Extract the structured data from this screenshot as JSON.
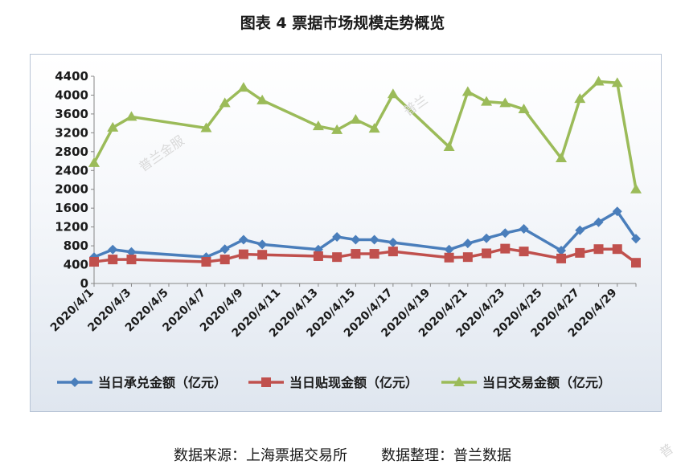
{
  "title": "图表 4  票据市场规模走势概览",
  "footer": {
    "source": "数据来源：上海票据交易所",
    "organizer": "数据整理：普兰数据"
  },
  "watermarks": [
    "普兰金服",
    "普兰",
    "普"
  ],
  "chart_data": {
    "type": "line",
    "x": [
      "2020/4/1",
      "2020/4/2",
      "2020/4/3",
      "2020/4/7",
      "2020/4/8",
      "2020/4/9",
      "2020/4/10",
      "2020/4/13",
      "2020/4/14",
      "2020/4/15",
      "2020/4/16",
      "2020/4/17",
      "2020/4/20",
      "2020/4/21",
      "2020/4/22",
      "2020/4/23",
      "2020/4/24",
      "2020/4/26",
      "2020/4/27",
      "2020/4/28",
      "2020/4/29",
      "2020/4/30"
    ],
    "xticks": [
      "2020/4/1",
      "2020/4/3",
      "2020/4/5",
      "2020/4/7",
      "2020/4/9",
      "2020/4/11",
      "2020/4/13",
      "2020/4/15",
      "2020/4/17",
      "2020/4/19",
      "2020/4/21",
      "2020/4/23",
      "2020/4/25",
      "2020/4/27",
      "2020/4/29"
    ],
    "ylim": [
      0,
      4400
    ],
    "yticks": [
      0,
      400,
      800,
      1200,
      1600,
      2000,
      2400,
      2800,
      3200,
      3600,
      4000,
      4400
    ],
    "series": [
      {
        "name": "当日承兑金额（亿元）",
        "color": "#4a7ebb",
        "marker": "diamond",
        "values": [
          560,
          720,
          670,
          560,
          730,
          930,
          830,
          720,
          990,
          930,
          930,
          870,
          720,
          850,
          960,
          1070,
          1160,
          700,
          1130,
          1300,
          1530,
          950
        ]
      },
      {
        "name": "当日贴现金额（亿元）",
        "color": "#c0504d",
        "marker": "square",
        "values": [
          460,
          510,
          510,
          460,
          510,
          620,
          610,
          580,
          560,
          630,
          630,
          680,
          550,
          560,
          640,
          740,
          680,
          530,
          650,
          730,
          730,
          440
        ]
      },
      {
        "name": "当日交易金额（亿元）",
        "color": "#9bbb59",
        "marker": "triangle",
        "values": [
          2560,
          3310,
          3540,
          3300,
          3830,
          4160,
          3890,
          3340,
          3260,
          3480,
          3290,
          4020,
          2900,
          4070,
          3860,
          3830,
          3700,
          2660,
          3920,
          4290,
          4260,
          2000
        ]
      }
    ],
    "legend": "bottom",
    "grid": false
  }
}
